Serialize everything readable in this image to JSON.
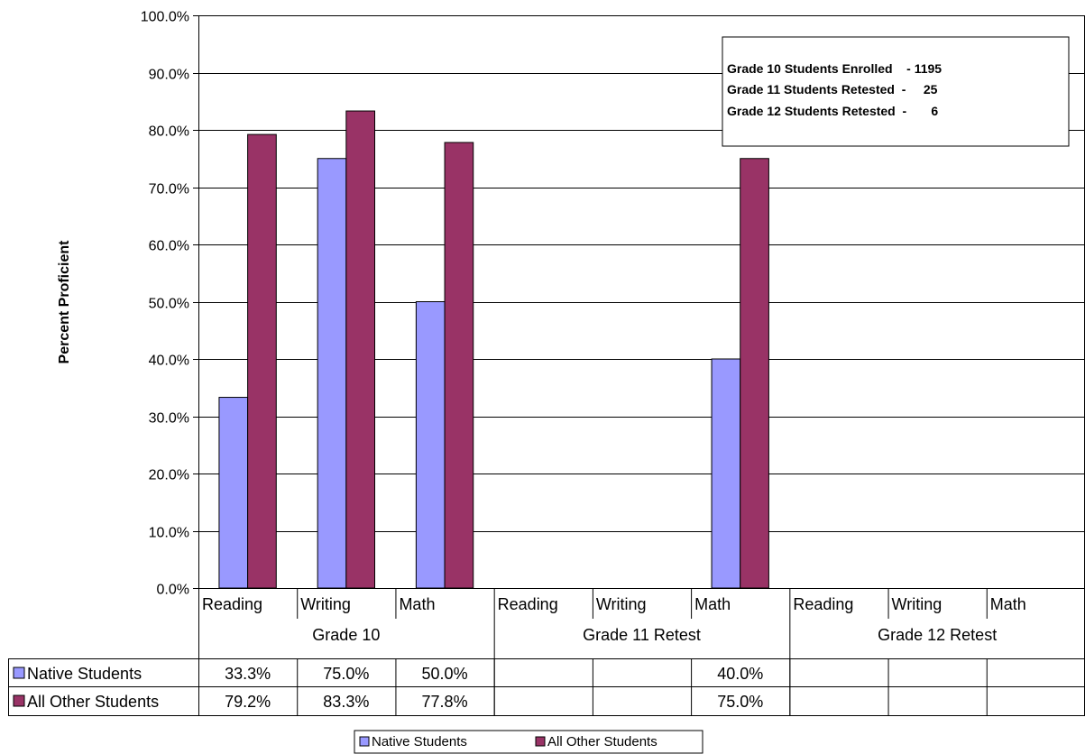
{
  "chart_data": {
    "type": "bar",
    "title": "",
    "xlabel": "",
    "ylabel": "Percent Proficient",
    "ylim": [
      0,
      100
    ],
    "yticks": [
      "0.0%",
      "10.0%",
      "20.0%",
      "30.0%",
      "40.0%",
      "50.0%",
      "60.0%",
      "70.0%",
      "80.0%",
      "90.0%",
      "100.0%"
    ],
    "grid": true,
    "groups": [
      "Grade 10",
      "Grade 11 Retest",
      "Grade 12 Retest"
    ],
    "categories": [
      "Reading",
      "Writing",
      "Math",
      "Reading",
      "Writing",
      "Math",
      "Reading",
      "Writing",
      "Math"
    ],
    "series": [
      {
        "name": "Native Students",
        "color": "#9999ff",
        "values": [
          33.3,
          75.0,
          50.0,
          null,
          null,
          40.0,
          null,
          null,
          null
        ],
        "labels": [
          "33.3%",
          "75.0%",
          "50.0%",
          "",
          "",
          "40.0%",
          "",
          "",
          ""
        ]
      },
      {
        "name": "All Other Students",
        "color": "#993366",
        "values": [
          79.2,
          83.3,
          77.8,
          null,
          null,
          75.0,
          null,
          null,
          null
        ],
        "labels": [
          "79.2%",
          "83.3%",
          "77.8%",
          "",
          "",
          "75.0%",
          "",
          "",
          ""
        ]
      }
    ],
    "annotation_lines": [
      "Grade 10 Students Enrolled    - 1195",
      "Grade 11 Students Retested  -     25",
      "Grade 12 Students Retested  -       6"
    ],
    "legend_position": "bottom"
  }
}
